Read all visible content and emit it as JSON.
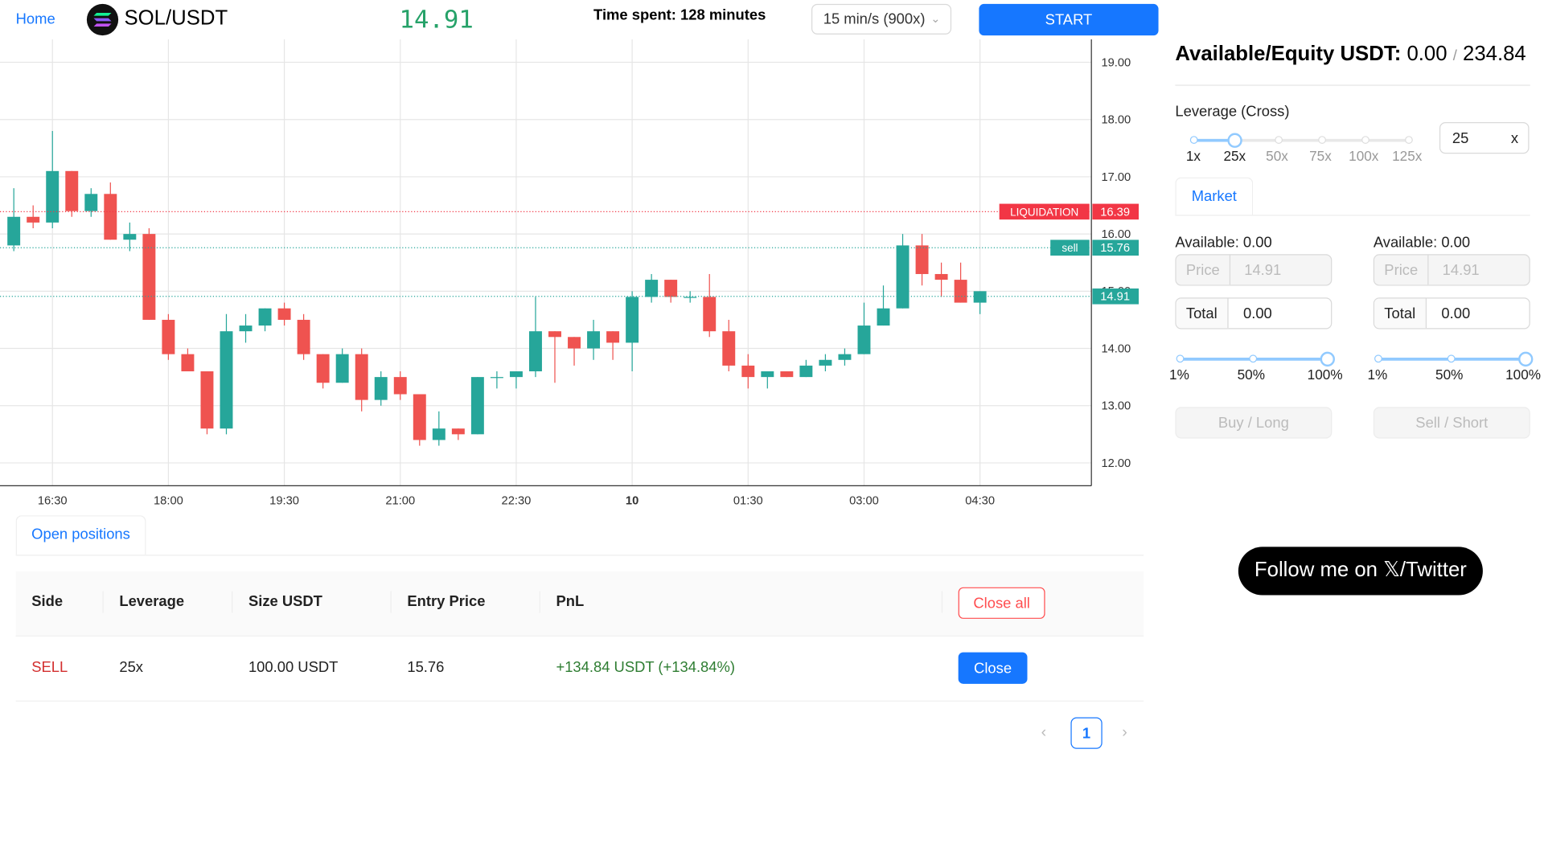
{
  "header": {
    "home": "Home",
    "pair": "SOL/USDT",
    "price": "14.91",
    "time_spent_label": "Time spent:",
    "time_spent_value": "128 minutes",
    "speed": "15 min/s (900x)",
    "start": "START"
  },
  "chart_data": {
    "type": "candlestick",
    "ylim": [
      11.6,
      19.4
    ],
    "y_ticks": [
      "19.00",
      "18.00",
      "17.00",
      "16.00",
      "15.00",
      "14.00",
      "13.00",
      "12.00"
    ],
    "x_ticks": [
      "16:30",
      "18:00",
      "19:30",
      "21:00",
      "22:30",
      "10",
      "01:30",
      "03:00",
      "04:30"
    ],
    "candles": [
      [
        15.8,
        16.3,
        15.7,
        16.8
      ],
      [
        16.3,
        16.2,
        16.1,
        16.5
      ],
      [
        16.2,
        17.1,
        16.1,
        17.8
      ],
      [
        17.1,
        16.4,
        16.3,
        17.1
      ],
      [
        16.4,
        16.7,
        16.3,
        16.8
      ],
      [
        16.7,
        15.9,
        15.9,
        16.9
      ],
      [
        15.9,
        16.0,
        15.7,
        16.2
      ],
      [
        16.0,
        14.5,
        14.5,
        16.1
      ],
      [
        14.5,
        13.9,
        13.8,
        14.6
      ],
      [
        13.9,
        13.6,
        13.6,
        14.0
      ],
      [
        13.6,
        12.6,
        12.5,
        13.6
      ],
      [
        12.6,
        14.3,
        12.5,
        14.6
      ],
      [
        14.3,
        14.4,
        14.1,
        14.6
      ],
      [
        14.4,
        14.7,
        14.3,
        14.7
      ],
      [
        14.7,
        14.5,
        14.4,
        14.8
      ],
      [
        14.5,
        13.9,
        13.8,
        14.6
      ],
      [
        13.9,
        13.4,
        13.3,
        13.9
      ],
      [
        13.4,
        13.9,
        13.4,
        14.0
      ],
      [
        13.9,
        13.1,
        12.9,
        14.0
      ],
      [
        13.1,
        13.5,
        13.0,
        13.6
      ],
      [
        13.5,
        13.2,
        13.1,
        13.6
      ],
      [
        13.2,
        12.4,
        12.3,
        13.2
      ],
      [
        12.4,
        12.6,
        12.3,
        12.9
      ],
      [
        12.6,
        12.5,
        12.4,
        12.6
      ],
      [
        12.5,
        13.5,
        12.5,
        13.5
      ],
      [
        13.5,
        13.5,
        13.3,
        13.6
      ],
      [
        13.5,
        13.6,
        13.3,
        13.6
      ],
      [
        13.6,
        14.3,
        13.5,
        14.9
      ],
      [
        14.3,
        14.2,
        13.4,
        14.3
      ],
      [
        14.2,
        14.0,
        13.7,
        14.2
      ],
      [
        14.0,
        14.3,
        13.8,
        14.5
      ],
      [
        14.3,
        14.1,
        13.8,
        14.3
      ],
      [
        14.1,
        14.9,
        13.6,
        15.0
      ],
      [
        14.9,
        15.2,
        14.8,
        15.3
      ],
      [
        15.2,
        14.9,
        14.8,
        15.2
      ],
      [
        14.9,
        14.9,
        14.8,
        15.0
      ],
      [
        14.9,
        14.3,
        14.2,
        15.3
      ],
      [
        14.3,
        13.7,
        13.6,
        14.5
      ],
      [
        13.7,
        13.5,
        13.3,
        13.9
      ],
      [
        13.5,
        13.6,
        13.3,
        13.6
      ],
      [
        13.6,
        13.5,
        13.5,
        13.6
      ],
      [
        13.5,
        13.7,
        13.5,
        13.8
      ],
      [
        13.7,
        13.8,
        13.6,
        13.9
      ],
      [
        13.8,
        13.9,
        13.7,
        14.0
      ],
      [
        13.9,
        14.4,
        13.9,
        14.8
      ],
      [
        14.4,
        14.7,
        14.4,
        15.1
      ],
      [
        14.7,
        15.8,
        14.7,
        16.0
      ],
      [
        15.8,
        15.3,
        15.1,
        16.0
      ],
      [
        15.3,
        15.2,
        14.9,
        15.5
      ],
      [
        15.2,
        14.8,
        14.8,
        15.5
      ],
      [
        14.8,
        15.0,
        14.6,
        15.0
      ]
    ],
    "price_lines": [
      {
        "label": "LIQUIDATION",
        "value": "16.39",
        "color": "#f23645"
      },
      {
        "label": "sell",
        "value": "15.76",
        "color": "#26a69a"
      },
      {
        "label": "",
        "value": "14.91",
        "color": "#26a69a"
      }
    ],
    "colors": {
      "up": "#26a69a",
      "down": "#ef5350"
    }
  },
  "positions": {
    "tab": "Open positions",
    "columns": [
      "Side",
      "Leverage",
      "Size USDT",
      "Entry Price",
      "PnL"
    ],
    "close_all": "Close all",
    "rows": [
      {
        "side": "SELL",
        "leverage": "25x",
        "size": "100.00 USDT",
        "entry": "15.76",
        "pnl": "+134.84 USDT (+134.84%)",
        "close": "Close"
      }
    ],
    "page": "1"
  },
  "panel": {
    "equity_label": "Available/Equity USDT:",
    "available": "0.00",
    "slash": "/",
    "equity": "234.84",
    "leverage_label": "Leverage (Cross)",
    "leverage_marks": [
      "1x",
      "25x",
      "50x",
      "75x",
      "100x",
      "125x"
    ],
    "leverage_value": "25",
    "leverage_unit": "x",
    "leverage_level": 0.194,
    "tab": "Market",
    "buy": {
      "available": "Available: 0.00",
      "price_label": "Price",
      "price": "14.91",
      "total_label": "Total",
      "total": "0.00",
      "pct_marks": [
        "1%",
        "50%",
        "100%"
      ],
      "button": "Buy / Long"
    },
    "sell": {
      "available": "Available: 0.00",
      "price_label": "Price",
      "price": "14.91",
      "total_label": "Total",
      "total": "0.00",
      "pct_marks": [
        "1%",
        "50%",
        "100%"
      ],
      "button": "Sell / Short"
    }
  },
  "follow": "Follow me on 𝕏/Twitter"
}
